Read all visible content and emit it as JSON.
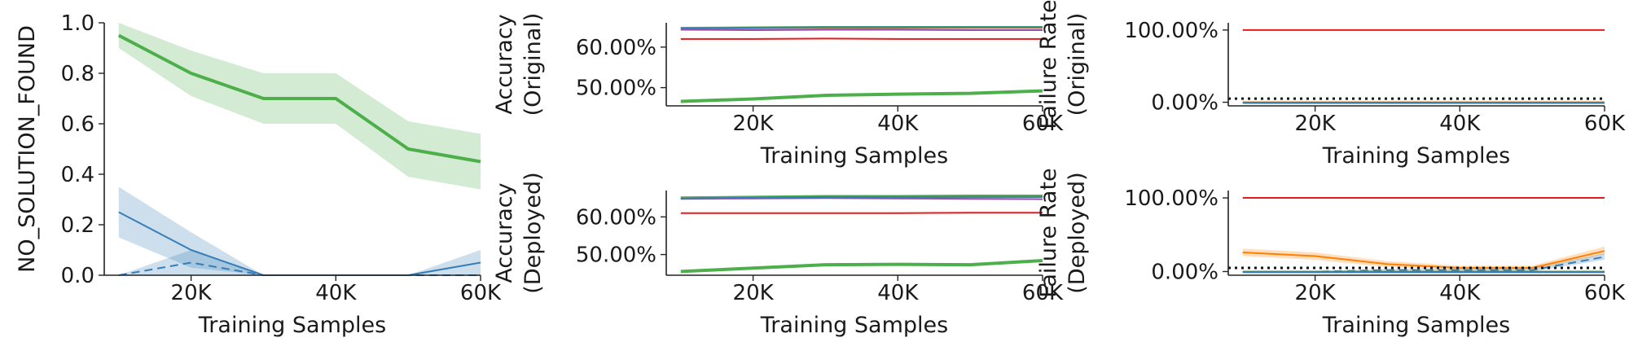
{
  "chart_data": [
    {
      "type": "line",
      "title": "",
      "xlabel": "Training Samples",
      "ylabel": "NO_SOLUTION_FOUND",
      "x": [
        10000,
        20000,
        30000,
        40000,
        50000,
        60000
      ],
      "xticks": [
        20000,
        40000,
        60000
      ],
      "xtick_labels": [
        "20K",
        "40K",
        "60K"
      ],
      "xlim": [
        8000,
        60000
      ],
      "ylim": [
        0,
        1.0
      ],
      "yticks": [
        0,
        0.2,
        0.4,
        0.6,
        0.8,
        1.0
      ],
      "ytick_labels": [
        "0.0",
        "0.2",
        "0.4",
        "0.6",
        "0.8",
        "1.0"
      ],
      "grid": false,
      "series": [
        {
          "color": "#4daf4a",
          "style": "solid",
          "width": 4,
          "values": [
            0.95,
            0.8,
            0.7,
            0.7,
            0.5,
            0.45
          ],
          "lower": [
            0.9,
            0.71,
            0.6,
            0.6,
            0.39,
            0.34
          ],
          "upper": [
            1.0,
            0.89,
            0.8,
            0.8,
            0.61,
            0.56
          ]
        },
        {
          "color": "#377eb8",
          "style": "solid",
          "width": 2,
          "values": [
            0.25,
            0.1,
            0.0,
            0.0,
            0.0,
            0.05
          ],
          "lower": [
            0.15,
            0.03,
            0.0,
            0.0,
            0.0,
            0.0
          ],
          "upper": [
            0.35,
            0.17,
            0.0,
            0.0,
            0.0,
            0.1
          ]
        },
        {
          "color": "#377eb8",
          "style": "dashed",
          "width": 2,
          "values": [
            0.0,
            0.05,
            0.0,
            0.0,
            0.0,
            0.0
          ],
          "lower": [
            0.0,
            0.0,
            0.0,
            0.0,
            0.0,
            0.0
          ],
          "upper": [
            0.0,
            0.1,
            0.0,
            0.0,
            0.0,
            0.0
          ]
        }
      ]
    },
    {
      "type": "line",
      "title": "",
      "xlabel": "Training Samples",
      "ylabel": [
        "Accuracy",
        "(Original)"
      ],
      "x": [
        10000,
        20000,
        30000,
        40000,
        50000,
        60000
      ],
      "xticks": [
        20000,
        40000,
        60000
      ],
      "xtick_labels": [
        "20K",
        "40K",
        "60K"
      ],
      "xlim": [
        8000,
        60000
      ],
      "ylim": [
        45.5,
        66
      ],
      "yticks": [
        50,
        60
      ],
      "ytick_labels": [
        "50.00%",
        "60.00%"
      ],
      "grid": false,
      "series": [
        {
          "color": "#4daf4a",
          "style": "solid",
          "width": 2,
          "values": [
            64.8,
            64.9,
            65.0,
            65.0,
            65.0,
            65.0
          ]
        },
        {
          "color": "#ff7f00",
          "style": "solid",
          "width": 2,
          "values": [
            64.5,
            64.6,
            64.7,
            64.7,
            64.7,
            64.7
          ]
        },
        {
          "color": "#984ea3",
          "style": "solid",
          "width": 2,
          "values": [
            64.3,
            64.2,
            64.3,
            64.3,
            64.2,
            64.2
          ]
        },
        {
          "color": "#377eb8",
          "style": "solid",
          "width": 2,
          "values": [
            64.6,
            64.8,
            64.9,
            64.9,
            64.9,
            64.9
          ]
        },
        {
          "color": "#e41a1c",
          "style": "solid",
          "width": 2,
          "values": [
            62.0,
            62.0,
            62.1,
            62.0,
            62.0,
            62.0
          ]
        },
        {
          "color": "#4daf4a",
          "style": "solid",
          "width": 4,
          "values": [
            46.6,
            47.2,
            48.1,
            48.4,
            48.6,
            49.2
          ]
        }
      ]
    },
    {
      "type": "line",
      "title": "",
      "xlabel": "Training Samples",
      "ylabel": [
        "Failure Rate",
        "(Original)"
      ],
      "x": [
        10000,
        20000,
        30000,
        40000,
        50000,
        60000
      ],
      "xticks": [
        20000,
        40000,
        60000
      ],
      "xtick_labels": [
        "20K",
        "40K",
        "60K"
      ],
      "xlim": [
        8000,
        60000
      ],
      "ylim": [
        -5,
        110
      ],
      "yticks": [
        0,
        100
      ],
      "ytick_labels": [
        "0.00%",
        "100.00%"
      ],
      "grid": false,
      "threshold": 5,
      "series": [
        {
          "color": "#e41a1c",
          "style": "solid",
          "width": 2,
          "values": [
            100,
            100,
            100,
            100,
            100,
            100
          ]
        },
        {
          "color": "#4daf4a",
          "style": "solid",
          "width": 2,
          "values": [
            0,
            0,
            0,
            0,
            0,
            0
          ]
        },
        {
          "color": "#ff7f00",
          "style": "solid",
          "width": 2,
          "values": [
            0,
            0,
            0,
            0,
            0,
            0
          ]
        },
        {
          "color": "#984ea3",
          "style": "solid",
          "width": 2,
          "values": [
            -0.5,
            -0.5,
            -0.5,
            -0.5,
            -0.5,
            -0.5
          ]
        },
        {
          "color": "#377eb8",
          "style": "solid",
          "width": 2,
          "values": [
            -1,
            -1,
            -1,
            -1,
            -1,
            -1
          ]
        }
      ]
    },
    {
      "type": "line",
      "title": "",
      "xlabel": "Training Samples",
      "ylabel": [
        "Accuracy",
        "(Deployed)"
      ],
      "x": [
        10000,
        20000,
        30000,
        40000,
        50000,
        60000
      ],
      "xticks": [
        20000,
        40000,
        60000
      ],
      "xtick_labels": [
        "20K",
        "40K",
        "60K"
      ],
      "xlim": [
        8000,
        60000
      ],
      "ylim": [
        44.5,
        67
      ],
      "yticks": [
        50,
        60
      ],
      "ytick_labels": [
        "50.00%",
        "60.00%"
      ],
      "grid": false,
      "series": [
        {
          "color": "#4daf4a",
          "style": "solid",
          "width": 2,
          "values": [
            65.2,
            65.4,
            65.6,
            65.6,
            65.7,
            65.7
          ]
        },
        {
          "color": "#ff7f00",
          "style": "solid",
          "width": 2,
          "values": [
            64.9,
            65.0,
            65.2,
            65.2,
            65.2,
            65.3
          ]
        },
        {
          "color": "#984ea3",
          "style": "solid",
          "width": 2,
          "values": [
            64.8,
            64.9,
            65.0,
            64.9,
            64.8,
            64.7
          ]
        },
        {
          "color": "#377eb8",
          "style": "solid",
          "width": 2,
          "values": [
            64.9,
            65.1,
            65.3,
            65.3,
            65.3,
            65.3
          ]
        },
        {
          "color": "#e41a1c",
          "style": "solid",
          "width": 2,
          "values": [
            61.0,
            61.0,
            61.0,
            61.0,
            61.1,
            61.1
          ]
        },
        {
          "color": "#4daf4a",
          "style": "solid",
          "width": 4,
          "values": [
            45.5,
            46.4,
            47.3,
            47.4,
            47.3,
            48.4
          ]
        }
      ]
    },
    {
      "type": "line",
      "title": "",
      "xlabel": "Training Samples",
      "ylabel": [
        "Failure Rate",
        "(Deployed)"
      ],
      "x": [
        10000,
        20000,
        30000,
        40000,
        50000,
        60000
      ],
      "xticks": [
        20000,
        40000,
        60000
      ],
      "xtick_labels": [
        "20K",
        "40K",
        "60K"
      ],
      "xlim": [
        8000,
        60000
      ],
      "ylim": [
        -5,
        110
      ],
      "yticks": [
        0,
        100
      ],
      "ytick_labels": [
        "0.00%",
        "100.00%"
      ],
      "grid": false,
      "threshold": 5,
      "series": [
        {
          "color": "#e41a1c",
          "style": "solid",
          "width": 2,
          "values": [
            100,
            100,
            100,
            100,
            100,
            100
          ]
        },
        {
          "color": "#ff7f00",
          "style": "solid",
          "width": 2,
          "values": [
            26,
            21,
            10,
            5,
            5,
            28
          ],
          "lower": [
            21,
            16,
            6,
            2,
            2,
            23
          ],
          "upper": [
            31,
            26,
            14,
            8,
            8,
            34
          ]
        },
        {
          "color": "#377eb8",
          "style": "dashed",
          "width": 2,
          "values": [
            0,
            0,
            2,
            2,
            2,
            20
          ],
          "lower": [
            0,
            0,
            0,
            0,
            0,
            16
          ],
          "upper": [
            0,
            0,
            4,
            4,
            4,
            25
          ]
        },
        {
          "color": "#4daf4a",
          "style": "solid",
          "width": 2,
          "values": [
            0,
            0,
            0,
            0,
            0,
            0
          ]
        },
        {
          "color": "#984ea3",
          "style": "solid",
          "width": 2,
          "values": [
            -0.5,
            -0.5,
            -0.5,
            -0.5,
            -0.5,
            -0.5
          ]
        },
        {
          "color": "#377eb8",
          "style": "solid",
          "width": 2,
          "values": [
            -1,
            -1,
            -1,
            -1,
            -1,
            -1
          ]
        }
      ]
    }
  ]
}
